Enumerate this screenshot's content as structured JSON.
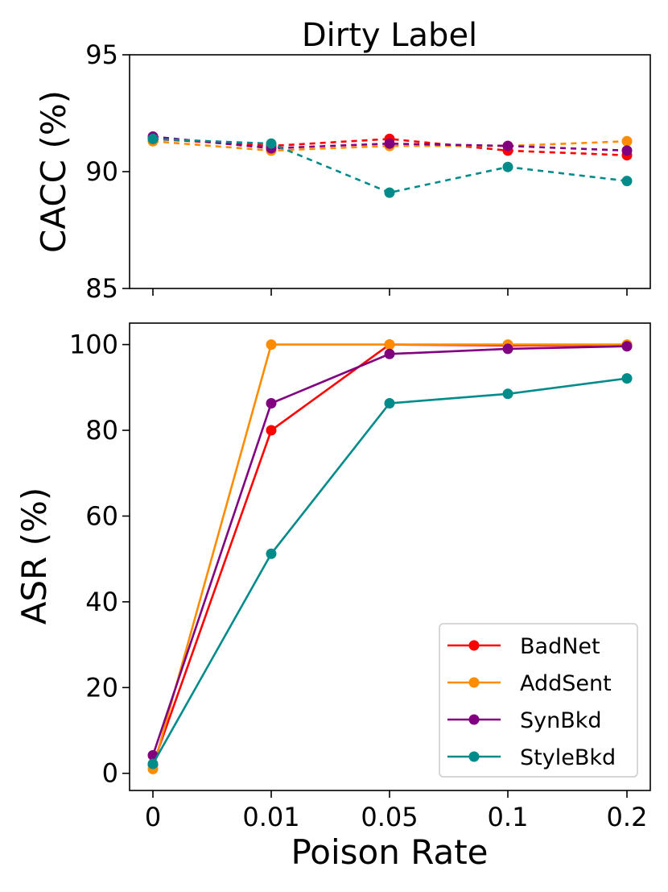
{
  "chart_data": [
    {
      "type": "line",
      "title": "Dirty Label",
      "ylabel": "CACC (%)",
      "xlabel": "",
      "categories": [
        "0",
        "0.01",
        "0.05",
        "0.1",
        "0.2"
      ],
      "ylim": [
        85,
        95
      ],
      "yticks": [
        85,
        90,
        95
      ],
      "line_style": "dashed",
      "series": [
        {
          "name": "BadNet",
          "color": "#ff0000",
          "values": [
            91.4,
            91.1,
            91.4,
            90.9,
            90.7
          ]
        },
        {
          "name": "AddSent",
          "color": "#ff8c00",
          "values": [
            91.3,
            90.9,
            91.1,
            91.1,
            91.3
          ]
        },
        {
          "name": "SynBkd",
          "color": "#800080",
          "values": [
            91.5,
            91.0,
            91.2,
            91.1,
            90.9
          ]
        },
        {
          "name": "StyleBkd",
          "color": "#008b8b",
          "values": [
            91.4,
            91.2,
            89.1,
            90.2,
            89.6
          ]
        }
      ]
    },
    {
      "type": "line",
      "title": "",
      "ylabel": "ASR (%)",
      "xlabel": "Poison Rate",
      "categories": [
        "0",
        "0.01",
        "0.05",
        "0.1",
        "0.2"
      ],
      "ylim": [
        -4,
        105
      ],
      "yticks": [
        0,
        20,
        40,
        60,
        80,
        100
      ],
      "line_style": "solid",
      "legend": "lower-right",
      "series": [
        {
          "name": "BadNet",
          "color": "#ff0000",
          "values": [
            2.0,
            80.0,
            100.0,
            99.8,
            99.9
          ]
        },
        {
          "name": "AddSent",
          "color": "#ff8c00",
          "values": [
            1.0,
            100.0,
            100.0,
            100.0,
            100.0
          ]
        },
        {
          "name": "SynBkd",
          "color": "#800080",
          "values": [
            4.2,
            86.3,
            97.8,
            99.0,
            99.6
          ]
        },
        {
          "name": "StyleBkd",
          "color": "#008b8b",
          "values": [
            2.2,
            51.2,
            86.3,
            88.5,
            92.1
          ]
        }
      ]
    }
  ]
}
